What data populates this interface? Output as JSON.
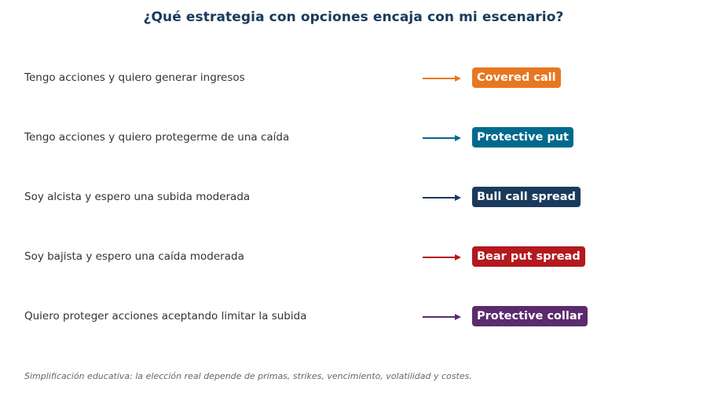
{
  "title": "¿Qué estrategia con opciones encaja con mi escenario?",
  "rows": [
    {
      "scenario": "Tengo acciones y quiero generar ingresos",
      "strategy": "Covered call",
      "color": "#e87722"
    },
    {
      "scenario": "Tengo acciones y quiero protegerme de una caída",
      "strategy": "Protective put",
      "color": "#006a8e"
    },
    {
      "scenario": "Soy alcista y espero una subida moderada",
      "strategy": "Bull call spread",
      "color": "#1a3a5c"
    },
    {
      "scenario": "Soy bajista y espero una caída moderada",
      "strategy": "Bear put spread",
      "color": "#b3191e"
    },
    {
      "scenario": "Quiero proteger acciones aceptando limitar la subida",
      "strategy": "Protective collar",
      "color": "#5c2a6e"
    }
  ],
  "icons": {
    "connector": "arrow-right-icon"
  },
  "footnote": "Simplificación educativa: la elección real depende de primas, strikes, vencimiento, volatilidad y costes."
}
